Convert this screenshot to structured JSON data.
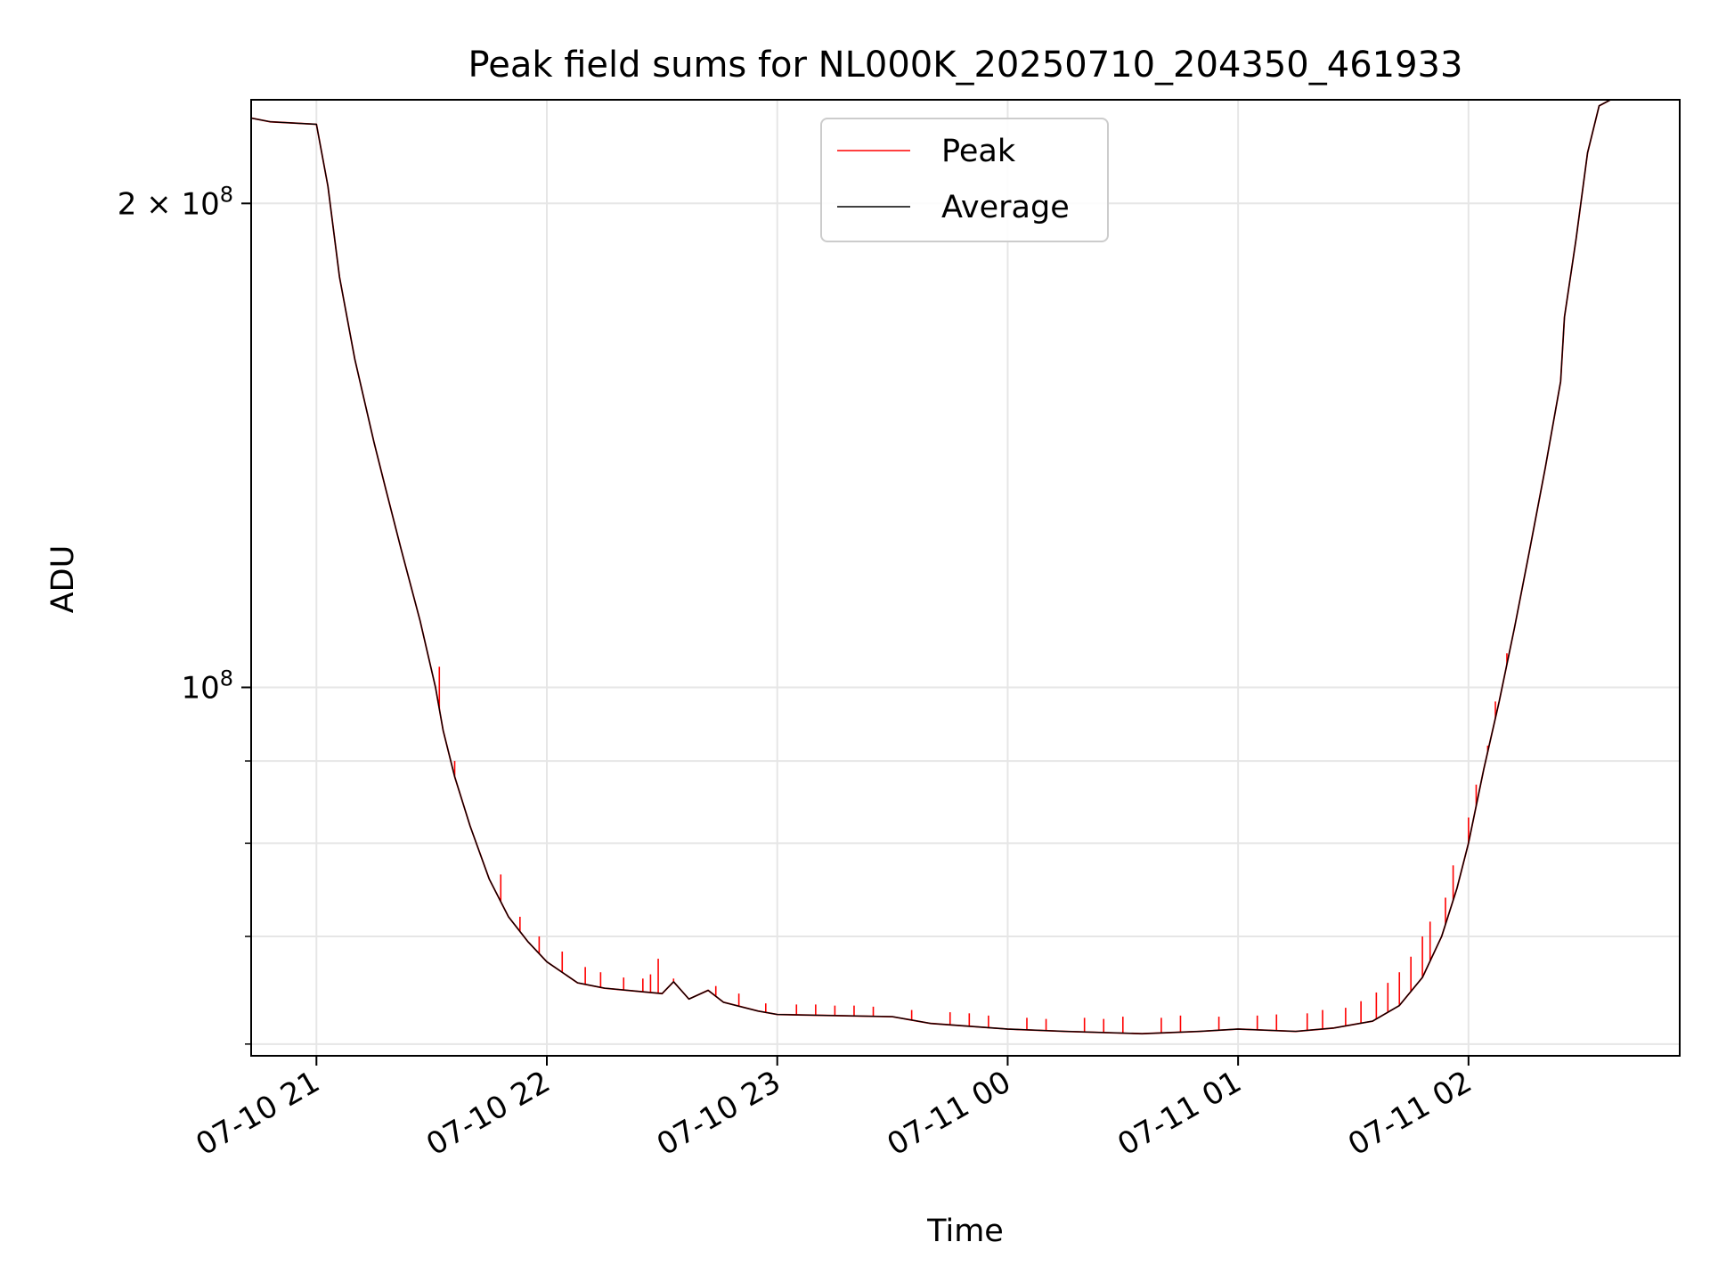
{
  "chart_data": {
    "type": "line",
    "title": "Peak field sums for NL000K_20250710_204350_461933",
    "xlabel": "Time",
    "ylabel": "ADU",
    "y_scale": "log",
    "grid": true,
    "legend_position": "upper center",
    "x_range": [
      "2025-07-10 20:43",
      "2025-07-11 02:55"
    ],
    "ylim": [
      59000000,
      232000000
    ],
    "x_ticks": [
      {
        "value": "2025-07-10 21:00",
        "label": "07-10 21"
      },
      {
        "value": "2025-07-10 22:00",
        "label": "07-10 22"
      },
      {
        "value": "2025-07-10 23:00",
        "label": "07-10 23"
      },
      {
        "value": "2025-07-11 00:00",
        "label": "07-11 00"
      },
      {
        "value": "2025-07-11 01:00",
        "label": "07-11 01"
      },
      {
        "value": "2025-07-11 02:00",
        "label": "07-11 02"
      }
    ],
    "y_major_ticks": [
      {
        "value": 100000000,
        "base": "10",
        "exp": "8",
        "mult": ""
      },
      {
        "value": 200000000,
        "base": "10",
        "exp": "8",
        "mult": "2 × "
      }
    ],
    "y_minor_ticks": [
      60000000,
      70000000,
      80000000,
      90000000
    ],
    "series": [
      {
        "name": "Peak",
        "color": "#ff0000",
        "line": [
          [
            "2025-07-10 20:43",
            226000000
          ],
          [
            "2025-07-10 20:48",
            224800000
          ],
          [
            "2025-07-10 21:00",
            224000000
          ],
          [
            "2025-07-10 21:03",
            205000000
          ],
          [
            "2025-07-10 21:06",
            180000000
          ],
          [
            "2025-07-10 21:10",
            160000000
          ],
          [
            "2025-07-10 21:15",
            142000000
          ],
          [
            "2025-07-10 21:18",
            133000000
          ],
          [
            "2025-07-10 21:22",
            122000000
          ],
          [
            "2025-07-10 21:27",
            110000000
          ],
          [
            "2025-07-10 21:31",
            100000000
          ],
          [
            "2025-07-10 21:33",
            94000000
          ],
          [
            "2025-07-10 21:36",
            88000000
          ],
          [
            "2025-07-10 21:40",
            82000000
          ],
          [
            "2025-07-10 21:45",
            76000000
          ],
          [
            "2025-07-10 21:50",
            72000000
          ],
          [
            "2025-07-10 21:55",
            69500000
          ],
          [
            "2025-07-10 22:00",
            67500000
          ],
          [
            "2025-07-10 22:08",
            65500000
          ],
          [
            "2025-07-10 22:15",
            65000000
          ],
          [
            "2025-07-10 22:30",
            64500000
          ],
          [
            "2025-07-10 22:33",
            65600000
          ],
          [
            "2025-07-10 22:37",
            64000000
          ],
          [
            "2025-07-10 22:42",
            64800000
          ],
          [
            "2025-07-10 22:46",
            63700000
          ],
          [
            "2025-07-10 22:55",
            62900000
          ],
          [
            "2025-07-10 23:00",
            62600000
          ],
          [
            "2025-07-10 23:30",
            62400000
          ],
          [
            "2025-07-10 23:40",
            61800000
          ],
          [
            "2025-07-11 00:00",
            61300000
          ],
          [
            "2025-07-11 00:15",
            61100000
          ],
          [
            "2025-07-11 00:35",
            60900000
          ],
          [
            "2025-07-11 00:50",
            61100000
          ],
          [
            "2025-07-11 01:00",
            61300000
          ],
          [
            "2025-07-11 01:15",
            61100000
          ],
          [
            "2025-07-11 01:25",
            61400000
          ],
          [
            "2025-07-11 01:35",
            62000000
          ],
          [
            "2025-07-11 01:42",
            63400000
          ],
          [
            "2025-07-11 01:48",
            66000000
          ],
          [
            "2025-07-11 01:53",
            70000000
          ],
          [
            "2025-07-11 01:57",
            75000000
          ],
          [
            "2025-07-11 02:00",
            80000000
          ],
          [
            "2025-07-11 02:04",
            89000000
          ],
          [
            "2025-07-11 02:08",
            98000000
          ],
          [
            "2025-07-11 02:12",
            109000000
          ],
          [
            "2025-07-11 02:16",
            122000000
          ],
          [
            "2025-07-11 02:20",
            137000000
          ],
          [
            "2025-07-11 02:24",
            155000000
          ],
          [
            "2025-07-11 02:25",
            170000000
          ],
          [
            "2025-07-11 02:28",
            190000000
          ],
          [
            "2025-07-11 02:31",
            215000000
          ],
          [
            "2025-07-11 02:34",
            230000000
          ],
          [
            "2025-07-11 02:37",
            232000000
          ],
          [
            "2025-07-11 02:40",
            232000000
          ]
        ],
        "spikes": [
          [
            "2025-07-10 21:32",
            103000000
          ],
          [
            "2025-07-10 21:36",
            90000000
          ],
          [
            "2025-07-10 21:42",
            79500000
          ],
          [
            "2025-07-10 21:48",
            76500000
          ],
          [
            "2025-07-10 21:53",
            72000000
          ],
          [
            "2025-07-10 21:58",
            70000000
          ],
          [
            "2025-07-10 22:04",
            68500000
          ],
          [
            "2025-07-10 22:10",
            67000000
          ],
          [
            "2025-07-10 22:14",
            66500000
          ],
          [
            "2025-07-10 22:20",
            66000000
          ],
          [
            "2025-07-10 22:25",
            65900000
          ],
          [
            "2025-07-10 22:27",
            66300000
          ],
          [
            "2025-07-10 22:29",
            67800000
          ],
          [
            "2025-07-10 22:33",
            65900000
          ],
          [
            "2025-07-10 22:44",
            65200000
          ],
          [
            "2025-07-10 22:50",
            64500000
          ],
          [
            "2025-07-10 22:57",
            63600000
          ],
          [
            "2025-07-10 23:05",
            63500000
          ],
          [
            "2025-07-10 23:10",
            63500000
          ],
          [
            "2025-07-10 23:15",
            63400000
          ],
          [
            "2025-07-10 23:20",
            63400000
          ],
          [
            "2025-07-10 23:25",
            63300000
          ],
          [
            "2025-07-10 23:35",
            63000000
          ],
          [
            "2025-07-10 23:45",
            62800000
          ],
          [
            "2025-07-10 23:50",
            62700000
          ],
          [
            "2025-07-10 23:55",
            62500000
          ],
          [
            "2025-07-11 00:05",
            62300000
          ],
          [
            "2025-07-11 00:10",
            62200000
          ],
          [
            "2025-07-11 00:20",
            62300000
          ],
          [
            "2025-07-11 00:25",
            62200000
          ],
          [
            "2025-07-11 00:30",
            62400000
          ],
          [
            "2025-07-11 00:40",
            62300000
          ],
          [
            "2025-07-11 00:45",
            62500000
          ],
          [
            "2025-07-11 00:55",
            62400000
          ],
          [
            "2025-07-11 01:05",
            62500000
          ],
          [
            "2025-07-11 01:10",
            62600000
          ],
          [
            "2025-07-11 01:18",
            62700000
          ],
          [
            "2025-07-11 01:22",
            63000000
          ],
          [
            "2025-07-11 01:28",
            63200000
          ],
          [
            "2025-07-11 01:32",
            63800000
          ],
          [
            "2025-07-11 01:36",
            64600000
          ],
          [
            "2025-07-11 01:39",
            65500000
          ],
          [
            "2025-07-11 01:42",
            66500000
          ],
          [
            "2025-07-11 01:45",
            68000000
          ],
          [
            "2025-07-11 01:48",
            70000000
          ],
          [
            "2025-07-11 01:50",
            71500000
          ],
          [
            "2025-07-11 01:54",
            74000000
          ],
          [
            "2025-07-11 01:56",
            77500000
          ],
          [
            "2025-07-11 02:00",
            83000000
          ],
          [
            "2025-07-11 02:02",
            87000000
          ],
          [
            "2025-07-11 02:05",
            92000000
          ],
          [
            "2025-07-11 02:07",
            98000000
          ],
          [
            "2025-07-11 02:10",
            105000000
          ]
        ]
      },
      {
        "name": "Average",
        "color": "#000000",
        "line": [
          [
            "2025-07-10 20:43",
            226000000
          ],
          [
            "2025-07-10 20:48",
            224800000
          ],
          [
            "2025-07-10 21:00",
            224000000
          ],
          [
            "2025-07-10 21:03",
            205000000
          ],
          [
            "2025-07-10 21:06",
            180000000
          ],
          [
            "2025-07-10 21:10",
            160000000
          ],
          [
            "2025-07-10 21:15",
            142000000
          ],
          [
            "2025-07-10 21:18",
            133000000
          ],
          [
            "2025-07-10 21:22",
            122000000
          ],
          [
            "2025-07-10 21:27",
            110000000
          ],
          [
            "2025-07-10 21:31",
            100000000
          ],
          [
            "2025-07-10 21:33",
            94000000
          ],
          [
            "2025-07-10 21:36",
            88000000
          ],
          [
            "2025-07-10 21:40",
            82000000
          ],
          [
            "2025-07-10 21:45",
            76000000
          ],
          [
            "2025-07-10 21:50",
            72000000
          ],
          [
            "2025-07-10 21:55",
            69500000
          ],
          [
            "2025-07-10 22:00",
            67500000
          ],
          [
            "2025-07-10 22:08",
            65500000
          ],
          [
            "2025-07-10 22:15",
            65000000
          ],
          [
            "2025-07-10 22:30",
            64500000
          ],
          [
            "2025-07-10 22:33",
            65600000
          ],
          [
            "2025-07-10 22:37",
            64000000
          ],
          [
            "2025-07-10 22:42",
            64800000
          ],
          [
            "2025-07-10 22:46",
            63700000
          ],
          [
            "2025-07-10 22:55",
            62900000
          ],
          [
            "2025-07-10 23:00",
            62600000
          ],
          [
            "2025-07-10 23:30",
            62400000
          ],
          [
            "2025-07-10 23:40",
            61800000
          ],
          [
            "2025-07-11 00:00",
            61300000
          ],
          [
            "2025-07-11 00:15",
            61100000
          ],
          [
            "2025-07-11 00:35",
            60900000
          ],
          [
            "2025-07-11 00:50",
            61100000
          ],
          [
            "2025-07-11 01:00",
            61300000
          ],
          [
            "2025-07-11 01:15",
            61100000
          ],
          [
            "2025-07-11 01:25",
            61400000
          ],
          [
            "2025-07-11 01:35",
            62000000
          ],
          [
            "2025-07-11 01:42",
            63400000
          ],
          [
            "2025-07-11 01:48",
            66000000
          ],
          [
            "2025-07-11 01:53",
            70000000
          ],
          [
            "2025-07-11 01:57",
            75000000
          ],
          [
            "2025-07-11 02:00",
            80000000
          ],
          [
            "2025-07-11 02:04",
            89000000
          ],
          [
            "2025-07-11 02:08",
            98000000
          ],
          [
            "2025-07-11 02:12",
            109000000
          ],
          [
            "2025-07-11 02:16",
            122000000
          ],
          [
            "2025-07-11 02:20",
            137000000
          ],
          [
            "2025-07-11 02:24",
            155000000
          ],
          [
            "2025-07-11 02:25",
            170000000
          ],
          [
            "2025-07-11 02:28",
            190000000
          ],
          [
            "2025-07-11 02:31",
            215000000
          ],
          [
            "2025-07-11 02:34",
            230000000
          ],
          [
            "2025-07-11 02:37",
            232000000
          ],
          [
            "2025-07-11 02:40",
            232000000
          ]
        ]
      }
    ]
  }
}
